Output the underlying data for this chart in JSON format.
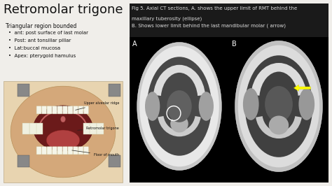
{
  "title": "Retromolar trigone",
  "title_fontsize": 13,
  "subtitle": "Triangular region bounded",
  "subtitle_fontsize": 5.5,
  "bullet_points": [
    "ant: post surface of last molar",
    "Post: ant tonsillar pillar",
    "Lat:buccal mucosa",
    "Apex: pterygoid hamulus"
  ],
  "bullet_fontsize": 5,
  "fig_caption_line1": "Fig 5. Axial CT sections, A. shows the upper limit of RMT behind the",
  "fig_caption_line2": "maxillary tuberosity (ellipse)",
  "fig_caption_line3": "B. Shows lower limit behind the last mandibular molar ( arrow)",
  "caption_fontsize": 5.0,
  "label_A": "A",
  "label_B": "B",
  "bg_color": "#f0eeea",
  "text_color": "#111111",
  "ct_bg": "#000000",
  "caption_text_color": "#dddddd"
}
